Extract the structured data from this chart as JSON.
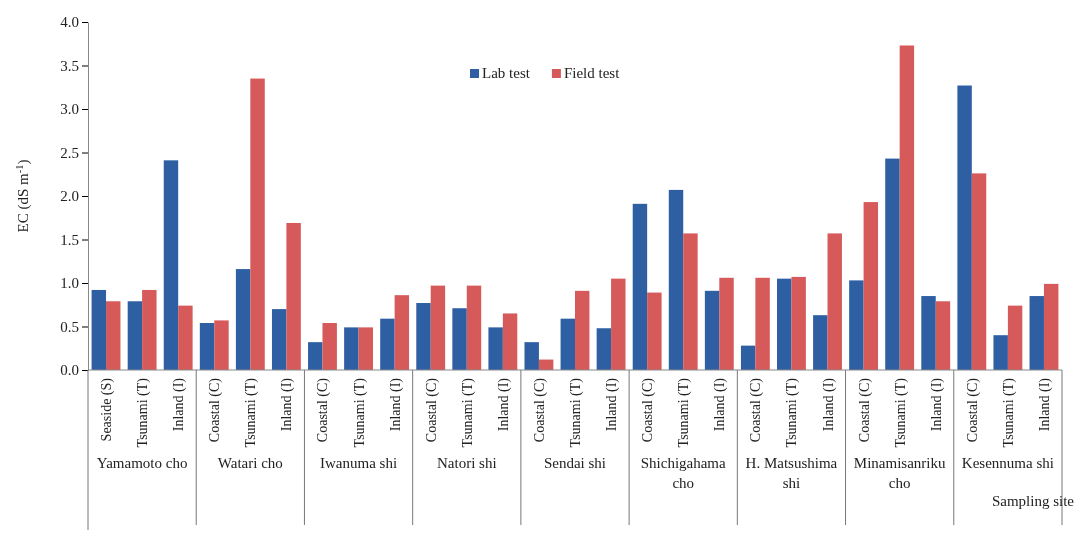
{
  "chart_data": {
    "type": "bar",
    "ylabel": "EC (dS m$^{-1}$)",
    "xlabel": "Sampling site",
    "categories": [
      "Seaside (S)",
      "Tsunami (T)",
      "Inland (I)",
      "Coastal (C)",
      "Tsunami (T)",
      "Inland (I)",
      "Coastal (C)",
      "Tsunami (T)",
      "Inland (I)",
      "Coastal (C)",
      "Tsunami (T)",
      "Inland (I)",
      "Coastal (C)",
      "Tsunami (T)",
      "Inland (I)",
      "Coastal (C)",
      "Tsunami (T)",
      "Inland (I)",
      "Coastal (C)",
      "Tsunami (T)",
      "Inland (I)",
      "Coastal (C)",
      "Tsunami (T)",
      "Inland (I)",
      "Coastal (C)",
      "Tsunami (T)",
      "Inland (I)"
    ],
    "annotations": [
      "Yamamoto cho",
      "Watari cho",
      "Iwanuma shi",
      "Natori shi",
      "Sendai shi",
      "Shichigahama cho",
      "H. Matsushima shi",
      "Minamisanriku cho",
      "Kesennuma shi"
    ],
    "series": [
      {
        "name": "Lab test",
        "color": "#2e5fa3",
        "values": [
          0.92,
          0.79,
          2.41,
          0.54,
          1.16,
          0.7,
          0.32,
          0.49,
          0.59,
          0.77,
          0.71,
          0.49,
          0.32,
          0.59,
          0.48,
          1.91,
          2.07,
          0.91,
          0.28,
          1.05,
          0.63,
          1.03,
          2.43,
          0.85,
          3.27,
          0.4,
          0.85
        ]
      },
      {
        "name": "Field test",
        "color": "#d65a5a",
        "values": [
          0.79,
          0.92,
          0.74,
          0.57,
          3.35,
          1.69,
          0.54,
          0.49,
          0.86,
          0.97,
          0.97,
          0.65,
          0.12,
          0.91,
          1.05,
          0.89,
          1.57,
          1.06,
          1.06,
          1.07,
          1.57,
          1.93,
          3.73,
          0.79,
          2.26,
          0.74,
          0.99
        ]
      }
    ],
    "ylim": [
      0,
      4
    ],
    "yticks": [
      {
        "value": 0,
        "label": "0.0"
      },
      {
        "value": 0.5,
        "label": "0.5"
      },
      {
        "value": 1,
        "label": "1.0"
      },
      {
        "value": 1.5,
        "label": "1.5"
      },
      {
        "value": 2,
        "label": "2.0"
      },
      {
        "value": 2.5,
        "label": "2.5"
      },
      {
        "value": 3,
        "label": "3.0"
      },
      {
        "value": 3.5,
        "label": "3.5"
      },
      {
        "value": 4,
        "label": "4.0"
      }
    ],
    "legend": "top",
    "grid": false
  }
}
